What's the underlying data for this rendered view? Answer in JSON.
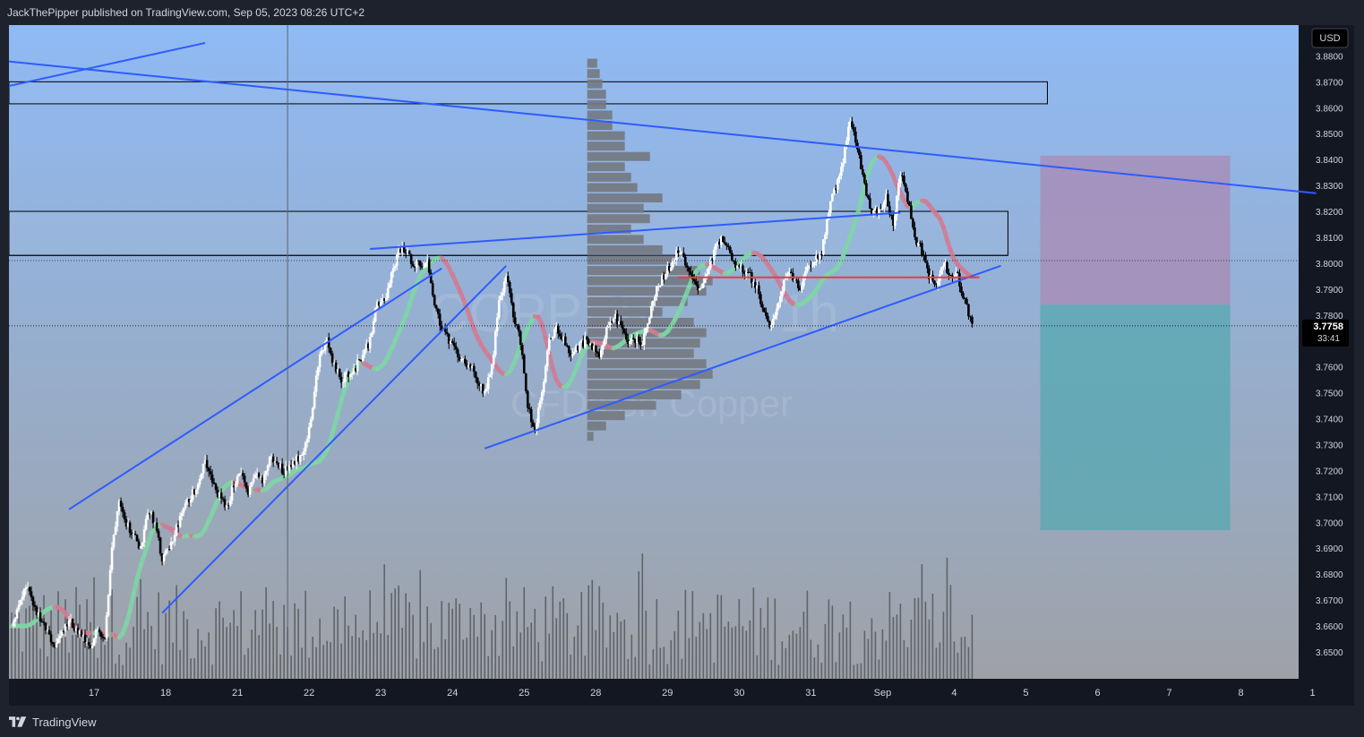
{
  "header": {
    "publisher_line": "JackThePipper published on TradingView.com, Sep 05, 2023 08:26 UTC+2"
  },
  "footer": {
    "brand": "TradingView",
    "logo_icon": "tradingview-logo-icon"
  },
  "currency_button": {
    "label": "USD"
  },
  "watermark": {
    "symbol": "COPPER",
    "interval": "1h",
    "description": "CFDs on Copper"
  },
  "price_label": {
    "price": "3.7758",
    "countdown": "33:41",
    "price_value": 3.7758
  },
  "colors": {
    "bg_top": "#8fbaf4",
    "bg_bottom": "#9ea2a7",
    "line": "#2f5bff",
    "zone_border": "#000000",
    "red_line": "#f23645",
    "ribbon_green": "#7fd6a6",
    "ribbon_red": "#d27b93",
    "stop_box": "#a88cb7",
    "target_box": "#5aa7b2",
    "volume_profile": "#747a82",
    "volume": "#5a5d62",
    "axis_text": "#d1d4dc"
  },
  "chart_data": {
    "type": "candlestick",
    "y_axis": {
      "ylim": [
        3.641,
        3.8905
      ],
      "ticks": [
        "3.8800",
        "3.8700",
        "3.8600",
        "3.8500",
        "3.8400",
        "3.8300",
        "3.8200",
        "3.8100",
        "3.8000",
        "3.7900",
        "3.7800",
        "3.7600",
        "3.7500",
        "3.7400",
        "3.7300",
        "3.7200",
        "3.7100",
        "3.7000",
        "3.6900",
        "3.6800",
        "3.6700",
        "3.6600",
        "3.6500"
      ]
    },
    "x_axis": {
      "labels": [
        {
          "label": "17",
          "t": 11.5
        },
        {
          "label": "18",
          "t": 21.5
        },
        {
          "label": "21",
          "t": 31.5
        },
        {
          "label": "22",
          "t": 41.5
        },
        {
          "label": "23",
          "t": 51.5
        },
        {
          "label": "24",
          "t": 61.5
        },
        {
          "label": "25",
          "t": 71.5
        },
        {
          "label": "28",
          "t": 81.5
        },
        {
          "label": "29",
          "t": 91.5
        },
        {
          "label": "30",
          "t": 101.5
        },
        {
          "label": "31",
          "t": 111.5
        },
        {
          "label": "Sep",
          "t": 121.5
        },
        {
          "label": "4",
          "t": 131.5
        },
        {
          "label": "5",
          "t": 141.5
        },
        {
          "label": "6",
          "t": 151.5
        },
        {
          "label": "7",
          "t": 161.5
        },
        {
          "label": "8",
          "t": 171.5
        },
        {
          "label": "1",
          "t": 181.5
        }
      ],
      "xlim": [
        0,
        180.3
      ]
    },
    "price_path": [
      [
        0,
        3.66
      ],
      [
        2,
        3.675
      ],
      [
        4,
        3.662
      ],
      [
        6,
        3.652
      ],
      [
        8,
        3.662
      ],
      [
        10,
        3.655
      ],
      [
        11,
        3.65
      ],
      [
        12,
        3.66
      ],
      [
        13,
        3.655
      ],
      [
        14,
        3.69
      ],
      [
        15,
        3.71
      ],
      [
        16,
        3.7
      ],
      [
        17,
        3.695
      ],
      [
        18,
        3.69
      ],
      [
        19,
        3.705
      ],
      [
        20,
        3.7
      ],
      [
        21,
        3.685
      ],
      [
        22,
        3.69
      ],
      [
        24,
        3.705
      ],
      [
        26,
        3.715
      ],
      [
        27,
        3.725
      ],
      [
        28,
        3.715
      ],
      [
        30,
        3.705
      ],
      [
        31,
        3.715
      ],
      [
        32,
        3.72
      ],
      [
        33,
        3.71
      ],
      [
        34,
        3.72
      ],
      [
        35,
        3.715
      ],
      [
        36,
        3.725
      ],
      [
        38,
        3.72
      ],
      [
        40,
        3.725
      ],
      [
        41,
        3.73
      ],
      [
        42,
        3.745
      ],
      [
        43,
        3.765
      ],
      [
        44,
        3.77
      ],
      [
        45,
        3.76
      ],
      [
        46,
        3.755
      ],
      [
        48,
        3.76
      ],
      [
        50,
        3.77
      ],
      [
        51,
        3.785
      ],
      [
        52,
        3.785
      ],
      [
        53,
        3.795
      ],
      [
        54,
        3.805
      ],
      [
        55,
        3.805
      ],
      [
        56,
        3.8
      ],
      [
        57,
        3.8
      ],
      [
        58,
        3.8
      ],
      [
        59,
        3.785
      ],
      [
        60,
        3.775
      ],
      [
        61,
        3.77
      ],
      [
        62,
        3.765
      ],
      [
        64,
        3.76
      ],
      [
        65,
        3.755
      ],
      [
        66,
        3.75
      ],
      [
        67,
        3.76
      ],
      [
        68,
        3.785
      ],
      [
        69,
        3.795
      ],
      [
        70,
        3.78
      ],
      [
        71,
        3.77
      ],
      [
        72,
        3.745
      ],
      [
        73,
        3.735
      ],
      [
        74,
        3.75
      ],
      [
        75,
        3.77
      ],
      [
        76,
        3.775
      ],
      [
        77,
        3.77
      ],
      [
        78,
        3.765
      ],
      [
        80,
        3.77
      ],
      [
        82,
        3.765
      ],
      [
        83,
        3.775
      ],
      [
        84,
        3.78
      ],
      [
        86,
        3.77
      ],
      [
        88,
        3.77
      ],
      [
        89,
        3.78
      ],
      [
        90,
        3.79
      ],
      [
        91,
        3.795
      ],
      [
        92,
        3.8
      ],
      [
        93,
        3.805
      ],
      [
        94,
        3.8
      ],
      [
        95,
        3.795
      ],
      [
        96,
        3.79
      ],
      [
        97,
        3.795
      ],
      [
        98,
        3.805
      ],
      [
        99,
        3.81
      ],
      [
        100,
        3.805
      ],
      [
        101,
        3.8
      ],
      [
        103,
        3.795
      ],
      [
        104,
        3.79
      ],
      [
        105,
        3.78
      ],
      [
        106,
        3.775
      ],
      [
        107,
        3.785
      ],
      [
        108,
        3.795
      ],
      [
        109,
        3.795
      ],
      [
        110,
        3.79
      ],
      [
        111,
        3.8
      ],
      [
        112,
        3.8
      ],
      [
        113,
        3.805
      ],
      [
        114,
        3.82
      ],
      [
        115,
        3.83
      ],
      [
        116,
        3.84
      ],
      [
        117,
        3.855
      ],
      [
        118,
        3.845
      ],
      [
        119,
        3.83
      ],
      [
        120,
        3.82
      ],
      [
        121,
        3.82
      ],
      [
        122,
        3.825
      ],
      [
        123,
        3.815
      ],
      [
        124,
        3.835
      ],
      [
        125,
        3.825
      ],
      [
        126,
        3.81
      ],
      [
        127,
        3.805
      ],
      [
        128,
        3.795
      ],
      [
        129,
        3.79
      ],
      [
        130,
        3.8
      ],
      [
        131,
        3.795
      ],
      [
        132,
        3.795
      ],
      [
        133,
        3.785
      ],
      [
        134,
        3.7758
      ]
    ],
    "volume_profile": {
      "bins": [
        3.733,
        3.737,
        3.741,
        3.745,
        3.749,
        3.753,
        3.757,
        3.761,
        3.765,
        3.769,
        3.773,
        3.777,
        3.781,
        3.785,
        3.789,
        3.793,
        3.797,
        3.801,
        3.805,
        3.809,
        3.813,
        3.817,
        3.821,
        3.825,
        3.829,
        3.833,
        3.837,
        3.841,
        3.845,
        3.849,
        3.853,
        3.857,
        3.861,
        3.865,
        3.869,
        3.873,
        3.877
      ],
      "values": [
        0.05,
        0.15,
        0.3,
        0.55,
        0.75,
        0.9,
        1.0,
        0.95,
        0.85,
        0.9,
        0.95,
        0.85,
        0.6,
        0.8,
        0.95,
        1.0,
        0.9,
        0.7,
        0.6,
        0.45,
        0.35,
        0.5,
        0.45,
        0.6,
        0.4,
        0.35,
        0.3,
        0.5,
        0.3,
        0.3,
        0.2,
        0.2,
        0.15,
        0.15,
        0.12,
        0.1,
        0.08
      ]
    },
    "volume_max": 1.0,
    "trendlines": [
      {
        "name": "upper-descending-resistance",
        "p1": [
          -1,
          3.878
        ],
        "p2": [
          182,
          3.827
        ]
      },
      {
        "name": "short-ascending-line",
        "p1": [
          -1,
          3.868
        ],
        "p2": [
          27,
          3.885
        ]
      },
      {
        "name": "channel-upper-line",
        "p1": [
          8,
          3.705
        ],
        "p2": [
          60,
          3.798
        ]
      },
      {
        "name": "channel-lower-line",
        "p1": [
          21,
          3.665
        ],
        "p2": [
          69,
          3.799
        ]
      },
      {
        "name": "triangle-upper-line",
        "p1": [
          50,
          3.8055
        ],
        "p2": [
          124,
          3.8195
        ]
      },
      {
        "name": "triangle-lower-line",
        "p1": [
          66,
          3.7285
        ],
        "p2": [
          138,
          3.799
        ]
      }
    ],
    "zones": [
      {
        "name": "upper-supply-zone",
        "t0": -1,
        "t1": 144.5,
        "top": 3.87,
        "bottom": 3.8615
      },
      {
        "name": "middle-zone",
        "t0": -1,
        "t1": 139,
        "top": 3.82,
        "bottom": 3.803
      },
      {
        "name": "lower-zone-line",
        "t0": -1,
        "t1": 139,
        "top": 3.803,
        "bottom": 3.803
      }
    ],
    "red_level": {
      "t0": 93,
      "t1": 135,
      "price": 3.7945
    },
    "dotted_level": 3.801,
    "crosshair_t": 38.5,
    "position": {
      "t0": 143.5,
      "t1": 170,
      "entry": 3.784,
      "stop": 3.8415,
      "target": 3.697
    },
    "volume_bars_t_range": [
      0,
      134
    ],
    "ribbon": "moving-average ribbon following price, green when rising, red when falling"
  }
}
